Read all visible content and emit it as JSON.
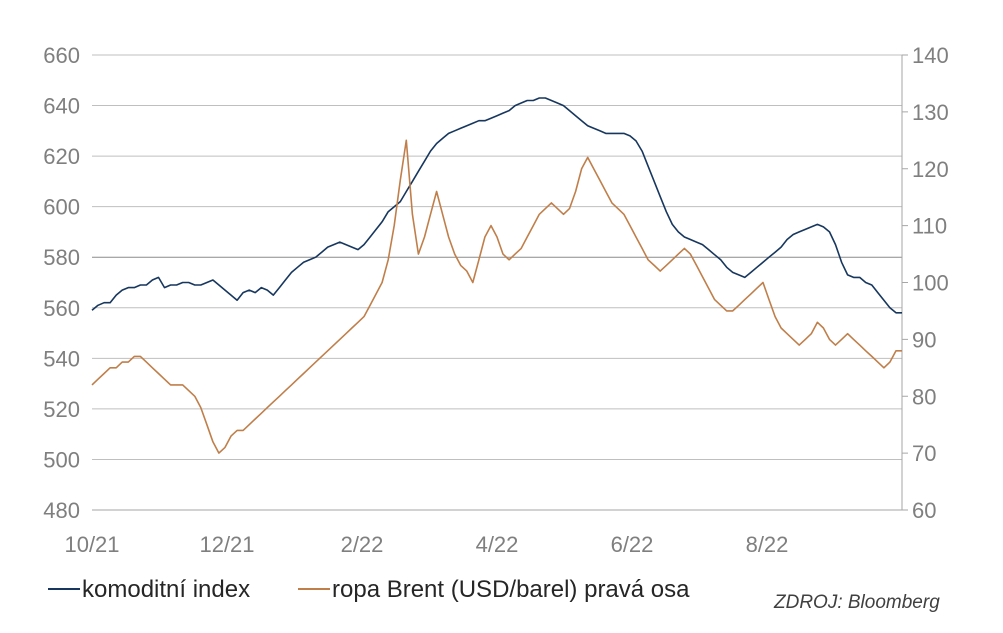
{
  "chart_data": {
    "type": "line",
    "title": "",
    "xlabel": "",
    "ylabel": "",
    "x_ticks": [
      "10/21",
      "12/21",
      "2/22",
      "4/22",
      "6/22",
      "8/22"
    ],
    "y_left": {
      "min": 480,
      "max": 660,
      "step": 20
    },
    "y_right": {
      "min": 60,
      "max": 140,
      "step": 10
    },
    "grid": "horizontal",
    "legend_placement": "bottom-left",
    "series": [
      {
        "name": "komoditní index",
        "axis": "left",
        "color": "#17375e",
        "points": [
          [
            0,
            559
          ],
          [
            3,
            561
          ],
          [
            6,
            562
          ],
          [
            9,
            562
          ],
          [
            12,
            565
          ],
          [
            15,
            567
          ],
          [
            18,
            568
          ],
          [
            21,
            568
          ],
          [
            24,
            569
          ],
          [
            27,
            569
          ],
          [
            30,
            571
          ],
          [
            33,
            572
          ],
          [
            36,
            568
          ],
          [
            39,
            569
          ],
          [
            42,
            569
          ],
          [
            45,
            570
          ],
          [
            48,
            570
          ],
          [
            51,
            569
          ],
          [
            54,
            569
          ],
          [
            57,
            570
          ],
          [
            60,
            571
          ],
          [
            63,
            569
          ],
          [
            66,
            567
          ],
          [
            69,
            565
          ],
          [
            72,
            563
          ],
          [
            75,
            566
          ],
          [
            78,
            567
          ],
          [
            81,
            566
          ],
          [
            84,
            568
          ],
          [
            87,
            567
          ],
          [
            90,
            565
          ],
          [
            93,
            568
          ],
          [
            96,
            571
          ],
          [
            99,
            574
          ],
          [
            102,
            576
          ],
          [
            105,
            578
          ],
          [
            108,
            579
          ],
          [
            111,
            580
          ],
          [
            114,
            582
          ],
          [
            117,
            584
          ],
          [
            120,
            585
          ],
          [
            123,
            586
          ],
          [
            126,
            585
          ],
          [
            129,
            584
          ],
          [
            132,
            583
          ],
          [
            135,
            585
          ],
          [
            138,
            588
          ],
          [
            141,
            591
          ],
          [
            144,
            594
          ],
          [
            147,
            598
          ],
          [
            150,
            600
          ],
          [
            153,
            602
          ],
          [
            156,
            606
          ],
          [
            159,
            610
          ],
          [
            162,
            614
          ],
          [
            165,
            618
          ],
          [
            168,
            622
          ],
          [
            171,
            625
          ],
          [
            174,
            627
          ],
          [
            177,
            629
          ],
          [
            180,
            630
          ],
          [
            183,
            631
          ],
          [
            186,
            632
          ],
          [
            189,
            633
          ],
          [
            192,
            634
          ],
          [
            195,
            634
          ],
          [
            198,
            635
          ],
          [
            201,
            636
          ],
          [
            204,
            637
          ],
          [
            207,
            638
          ],
          [
            210,
            640
          ],
          [
            213,
            641
          ],
          [
            216,
            642
          ],
          [
            219,
            642
          ],
          [
            222,
            643
          ],
          [
            225,
            643
          ],
          [
            228,
            642
          ],
          [
            231,
            641
          ],
          [
            234,
            640
          ],
          [
            237,
            638
          ],
          [
            240,
            636
          ],
          [
            243,
            634
          ],
          [
            246,
            632
          ],
          [
            249,
            631
          ],
          [
            252,
            630
          ],
          [
            255,
            629
          ],
          [
            258,
            629
          ],
          [
            261,
            629
          ],
          [
            264,
            629
          ],
          [
            267,
            628
          ],
          [
            270,
            626
          ],
          [
            273,
            622
          ],
          [
            276,
            616
          ],
          [
            279,
            610
          ],
          [
            282,
            604
          ],
          [
            285,
            598
          ],
          [
            288,
            593
          ],
          [
            291,
            590
          ],
          [
            294,
            588
          ],
          [
            297,
            587
          ],
          [
            300,
            586
          ],
          [
            303,
            585
          ],
          [
            306,
            583
          ],
          [
            309,
            581
          ],
          [
            312,
            579
          ],
          [
            315,
            576
          ],
          [
            318,
            574
          ],
          [
            321,
            573
          ],
          [
            324,
            572
          ],
          [
            327,
            574
          ],
          [
            330,
            576
          ],
          [
            333,
            578
          ],
          [
            336,
            580
          ],
          [
            339,
            582
          ],
          [
            342,
            584
          ],
          [
            345,
            587
          ],
          [
            348,
            589
          ],
          [
            351,
            590
          ],
          [
            354,
            591
          ],
          [
            357,
            592
          ],
          [
            360,
            593
          ],
          [
            363,
            592
          ],
          [
            366,
            590
          ],
          [
            369,
            585
          ],
          [
            372,
            578
          ],
          [
            375,
            573
          ],
          [
            378,
            572
          ],
          [
            381,
            572
          ],
          [
            384,
            570
          ],
          [
            387,
            569
          ],
          [
            390,
            566
          ],
          [
            393,
            563
          ],
          [
            396,
            560
          ],
          [
            399,
            558
          ],
          [
            402,
            558
          ]
        ]
      },
      {
        "name": "ropa Brent (USD/barel) pravá osa",
        "axis": "right",
        "color": "#c07f4a",
        "points": [
          [
            0,
            82
          ],
          [
            3,
            83
          ],
          [
            6,
            84
          ],
          [
            9,
            85
          ],
          [
            12,
            85
          ],
          [
            15,
            86
          ],
          [
            18,
            86
          ],
          [
            21,
            87
          ],
          [
            24,
            87
          ],
          [
            27,
            86
          ],
          [
            30,
            85
          ],
          [
            33,
            84
          ],
          [
            36,
            83
          ],
          [
            39,
            82
          ],
          [
            42,
            82
          ],
          [
            45,
            82
          ],
          [
            48,
            81
          ],
          [
            51,
            80
          ],
          [
            54,
            78
          ],
          [
            57,
            75
          ],
          [
            60,
            72
          ],
          [
            63,
            70
          ],
          [
            66,
            71
          ],
          [
            69,
            73
          ],
          [
            72,
            74
          ],
          [
            75,
            74
          ],
          [
            78,
            75
          ],
          [
            81,
            76
          ],
          [
            84,
            77
          ],
          [
            87,
            78
          ],
          [
            90,
            79
          ],
          [
            93,
            80
          ],
          [
            96,
            81
          ],
          [
            99,
            82
          ],
          [
            102,
            83
          ],
          [
            105,
            84
          ],
          [
            108,
            85
          ],
          [
            111,
            86
          ],
          [
            114,
            87
          ],
          [
            117,
            88
          ],
          [
            120,
            89
          ],
          [
            123,
            90
          ],
          [
            126,
            91
          ],
          [
            129,
            92
          ],
          [
            132,
            93
          ],
          [
            135,
            94
          ],
          [
            138,
            96
          ],
          [
            141,
            98
          ],
          [
            144,
            100
          ],
          [
            147,
            104
          ],
          [
            150,
            110
          ],
          [
            153,
            118
          ],
          [
            156,
            125
          ],
          [
            159,
            112
          ],
          [
            162,
            105
          ],
          [
            165,
            108
          ],
          [
            168,
            112
          ],
          [
            171,
            116
          ],
          [
            174,
            112
          ],
          [
            177,
            108
          ],
          [
            180,
            105
          ],
          [
            183,
            103
          ],
          [
            186,
            102
          ],
          [
            189,
            100
          ],
          [
            192,
            104
          ],
          [
            195,
            108
          ],
          [
            198,
            110
          ],
          [
            201,
            108
          ],
          [
            204,
            105
          ],
          [
            207,
            104
          ],
          [
            210,
            105
          ],
          [
            213,
            106
          ],
          [
            216,
            108
          ],
          [
            219,
            110
          ],
          [
            222,
            112
          ],
          [
            225,
            113
          ],
          [
            228,
            114
          ],
          [
            231,
            113
          ],
          [
            234,
            112
          ],
          [
            237,
            113
          ],
          [
            240,
            116
          ],
          [
            243,
            120
          ],
          [
            246,
            122
          ],
          [
            249,
            120
          ],
          [
            252,
            118
          ],
          [
            255,
            116
          ],
          [
            258,
            114
          ],
          [
            261,
            113
          ],
          [
            264,
            112
          ],
          [
            267,
            110
          ],
          [
            270,
            108
          ],
          [
            273,
            106
          ],
          [
            276,
            104
          ],
          [
            279,
            103
          ],
          [
            282,
            102
          ],
          [
            285,
            103
          ],
          [
            288,
            104
          ],
          [
            291,
            105
          ],
          [
            294,
            106
          ],
          [
            297,
            105
          ],
          [
            300,
            103
          ],
          [
            303,
            101
          ],
          [
            306,
            99
          ],
          [
            309,
            97
          ],
          [
            312,
            96
          ],
          [
            315,
            95
          ],
          [
            318,
            95
          ],
          [
            321,
            96
          ],
          [
            324,
            97
          ],
          [
            327,
            98
          ],
          [
            330,
            99
          ],
          [
            333,
            100
          ],
          [
            336,
            97
          ],
          [
            339,
            94
          ],
          [
            342,
            92
          ],
          [
            345,
            91
          ],
          [
            348,
            90
          ],
          [
            351,
            89
          ],
          [
            354,
            90
          ],
          [
            357,
            91
          ],
          [
            360,
            93
          ],
          [
            363,
            92
          ],
          [
            366,
            90
          ],
          [
            369,
            89
          ],
          [
            372,
            90
          ],
          [
            375,
            91
          ],
          [
            378,
            90
          ],
          [
            381,
            89
          ],
          [
            384,
            88
          ],
          [
            387,
            87
          ],
          [
            390,
            86
          ],
          [
            393,
            85
          ],
          [
            396,
            86
          ],
          [
            399,
            88
          ],
          [
            402,
            88
          ]
        ]
      }
    ]
  },
  "source": "ZDROJ: Bloomberg"
}
